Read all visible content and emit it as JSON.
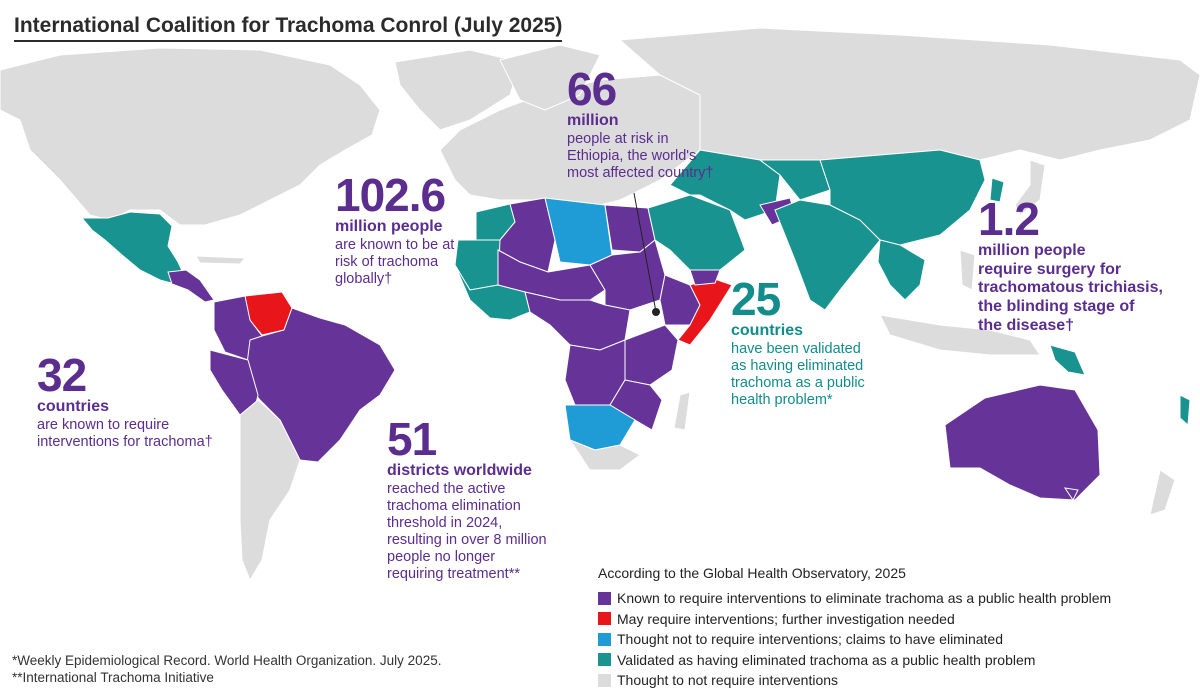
{
  "title": "International Coalition for Trachoma Conrol (July 2025)",
  "colors": {
    "known": "#663399",
    "may_require": "#e8161b",
    "thought_not": "#1f9bd6",
    "validated": "#18938f",
    "not_require": "#dcdcdc",
    "ocean": "#ffffff"
  },
  "stats": {
    "s66": {
      "number": "66",
      "unit": "million",
      "desc": [
        "people at risk in",
        "Ethiopia, the world's",
        "most affected country†"
      ]
    },
    "s102": {
      "number": "102.6",
      "unit": "million people",
      "desc": [
        "are known to be at",
        "risk of trachoma",
        "globally†"
      ]
    },
    "s12": {
      "number": "1.2",
      "unit": [
        "million people",
        "require surgery for",
        "trachomatous trichiasis,",
        "the blinding stage of",
        "the disease†"
      ]
    },
    "s25": {
      "number": "25",
      "unit": "countries",
      "desc": [
        "have been validated",
        "as having eliminated",
        "trachoma as a public",
        "health problem*"
      ]
    },
    "s32": {
      "number": "32",
      "unit": "countries",
      "desc": [
        "are known to require",
        "interventions for trachoma†"
      ]
    },
    "s51": {
      "number": "51",
      "unit": "districts worldwide",
      "desc": [
        "reached the active",
        "trachoma elimination",
        "threshold in 2024,",
        "resulting in over 8 million",
        "people no longer",
        "requiring treatment**"
      ]
    }
  },
  "legend": {
    "title": "According to the Global Health Observatory, 2025",
    "items": [
      {
        "label": "Known to require interventions to eliminate trachoma as a public health problem",
        "color": "#663399"
      },
      {
        "label": "May require interventions; further investigation needed",
        "color": "#e8161b"
      },
      {
        "label": "Thought not to require interventions; claims to have eliminated",
        "color": "#1f9bd6"
      },
      {
        "label": "Validated as having eliminated trachoma as a public health problem",
        "color": "#18938f"
      },
      {
        "label": "Thought to not require interventions",
        "color": "#dcdcdc"
      }
    ]
  },
  "footnotes": [
    "*Weekly Epidemiological Record. World Health Organization. July 2025.",
    "**International Trachoma Initiative"
  ]
}
